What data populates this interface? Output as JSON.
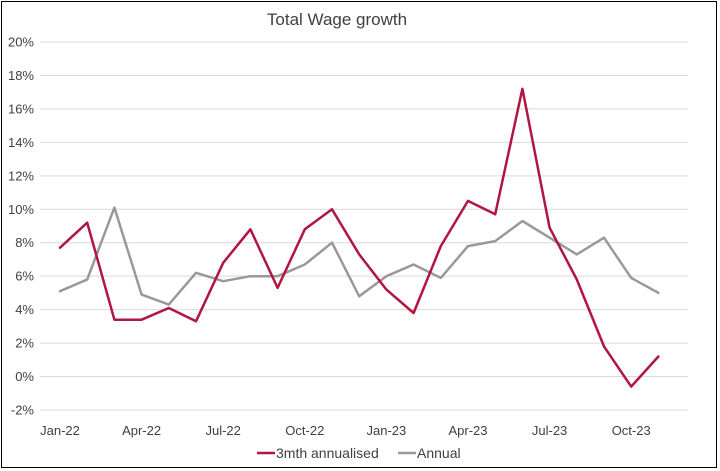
{
  "chart_data": {
    "type": "line",
    "title": "Total Wage growth",
    "xlabel": "",
    "ylabel": "",
    "x": [
      "Jan-22",
      "Feb-22",
      "Mar-22",
      "Apr-22",
      "May-22",
      "Jun-22",
      "Jul-22",
      "Aug-22",
      "Sep-22",
      "Oct-22",
      "Nov-22",
      "Dec-22",
      "Jan-23",
      "Feb-23",
      "Mar-23",
      "Apr-23",
      "May-23",
      "Jun-23",
      "Jul-23",
      "Aug-23",
      "Sep-23",
      "Oct-23",
      "Nov-23"
    ],
    "x_tick_labels": [
      "Jan-22",
      "Apr-22",
      "Jul-22",
      "Oct-22",
      "Jan-23",
      "Apr-23",
      "Jul-23",
      "Oct-23"
    ],
    "ylim": [
      -2,
      20
    ],
    "y_ticks": [
      -2,
      0,
      2,
      4,
      6,
      8,
      10,
      12,
      14,
      16,
      18,
      20
    ],
    "y_tick_labels": [
      "-2%",
      "0%",
      "2%",
      "4%",
      "6%",
      "8%",
      "10%",
      "12%",
      "14%",
      "16%",
      "18%",
      "20%"
    ],
    "grid": true,
    "legend_position": "bottom",
    "series": [
      {
        "name": "3mth annualised",
        "color": "#b0163f",
        "values": [
          7.7,
          9.2,
          3.4,
          3.4,
          4.1,
          3.3,
          6.8,
          8.8,
          5.3,
          8.8,
          10.0,
          7.3,
          5.2,
          3.8,
          7.8,
          10.5,
          9.7,
          17.2,
          8.9,
          5.8,
          1.8,
          -0.6,
          1.2
        ]
      },
      {
        "name": "Annual",
        "color": "#999999",
        "values": [
          5.1,
          5.8,
          10.1,
          4.9,
          4.3,
          6.2,
          5.7,
          6.0,
          6.0,
          6.7,
          8.0,
          4.8,
          6.0,
          6.7,
          5.9,
          7.8,
          8.1,
          9.3,
          8.3,
          7.3,
          8.3,
          5.9,
          5.0
        ]
      }
    ]
  }
}
